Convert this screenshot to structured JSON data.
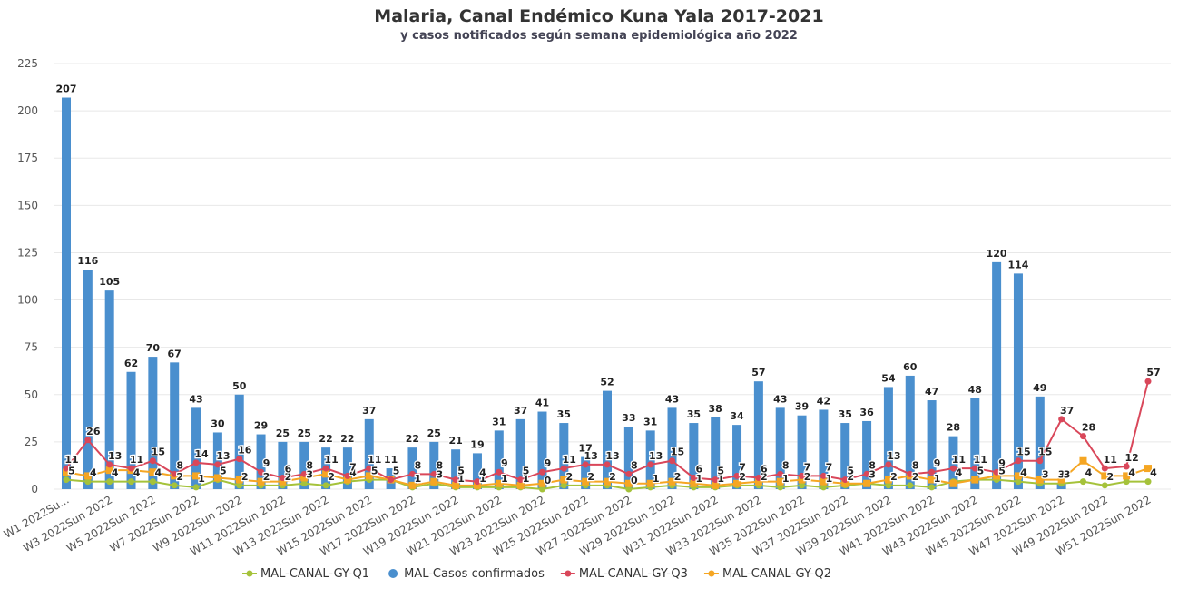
{
  "chart_data": {
    "type": "bar_line",
    "title": "Malaria, Canal Endémico Kuna Yala 2017-2021",
    "subtitle": "y casos notificados según semana epidemiológica año 2022",
    "categories": [
      "W1 2022Su...",
      null,
      "W3 2022Sun 2022",
      null,
      "W5 2022Sun 2022",
      null,
      "W7 2022Sun 2022",
      null,
      "W9 2022Sun 2022",
      null,
      "W11 2022Sun 2022",
      null,
      "W13 2022Sun 2022",
      null,
      "W15 2022Sun 2022",
      null,
      "W17 2022Sun 2022",
      null,
      "W19 2022Sun 2022",
      null,
      "W21 2022Sun 2022",
      null,
      "W23 2022Sun 2022",
      null,
      "W25 2022Sun 2022",
      null,
      "W27 2022Sun 2022",
      null,
      "W29 2022Sun 2022",
      null,
      "W31 2022Sun 2022",
      null,
      "W33 2022Sun 2022",
      null,
      "W35 2022Sun 2022",
      null,
      "W37 2022Sun 2022",
      null,
      "W39 2022Sun 2022",
      null,
      "W41 2022Sun 2022",
      null,
      "W43 2022Sun 2022",
      null,
      "W45 2022Sun 2022",
      null,
      "W47 2022Sun 2022",
      null,
      "W49 2022Sun 2022",
      null,
      "W51 2022Sun 2022"
    ],
    "series": [
      {
        "name": "MAL-CANAL-GY-Q1",
        "kind": "line",
        "color": "#a5c23a",
        "values": [
          5,
          4,
          4,
          4,
          4,
          2,
          1,
          5,
          2,
          2,
          2,
          3,
          2,
          4,
          5,
          5,
          1,
          3,
          1,
          1,
          1,
          1,
          0,
          2,
          2,
          2,
          0,
          1,
          2,
          1,
          1,
          2,
          2,
          1,
          2,
          1,
          2,
          3,
          2,
          2,
          1,
          4,
          5,
          5,
          4,
          3,
          3,
          4,
          2,
          4,
          4
        ]
      },
      {
        "name": "MAL-Casos confirmados",
        "kind": "bar",
        "color": "#4a8fce",
        "values": [
          207,
          116,
          105,
          62,
          70,
          67,
          43,
          30,
          50,
          29,
          25,
          25,
          22,
          22,
          37,
          11,
          22,
          25,
          21,
          19,
          31,
          37,
          41,
          35,
          17,
          52,
          33,
          31,
          43,
          35,
          38,
          34,
          57,
          43,
          39,
          42,
          35,
          36,
          54,
          60,
          47,
          28,
          48,
          120,
          114,
          49,
          3,
          null,
          null,
          null,
          null
        ]
      },
      {
        "name": "MAL-CANAL-GY-Q3",
        "kind": "line",
        "color": "#d9475a",
        "values": [
          11,
          26,
          13,
          11,
          15,
          8,
          14,
          13,
          16,
          9,
          6,
          8,
          11,
          7,
          11,
          5,
          8,
          8,
          5,
          4,
          9,
          5,
          9,
          11,
          13,
          13,
          8,
          13,
          15,
          6,
          5,
          7,
          6,
          8,
          7,
          7,
          5,
          8,
          13,
          8,
          9,
          11,
          11,
          9,
          15,
          15,
          37,
          28,
          11,
          12,
          57
        ]
      },
      {
        "name": "MAL-CANAL-GY-Q2",
        "kind": "line",
        "color": "#f5a623",
        "values": [
          9,
          7,
          10,
          10,
          9,
          7,
          7,
          6,
          5,
          4,
          4,
          6,
          8,
          5,
          7,
          5,
          2,
          4,
          2,
          2,
          3,
          2,
          3,
          5,
          4,
          4,
          3,
          3,
          4,
          3,
          2,
          3,
          4,
          4,
          5,
          4,
          3,
          3,
          5,
          7,
          5,
          3,
          5,
          7,
          7,
          5,
          5,
          15,
          7,
          7,
          11
        ]
      }
    ],
    "ylim": [
      0,
      225
    ],
    "yticks": [
      0,
      25,
      50,
      75,
      100,
      125,
      150,
      175,
      200,
      225
    ],
    "grid": true,
    "legend": "bottom"
  }
}
